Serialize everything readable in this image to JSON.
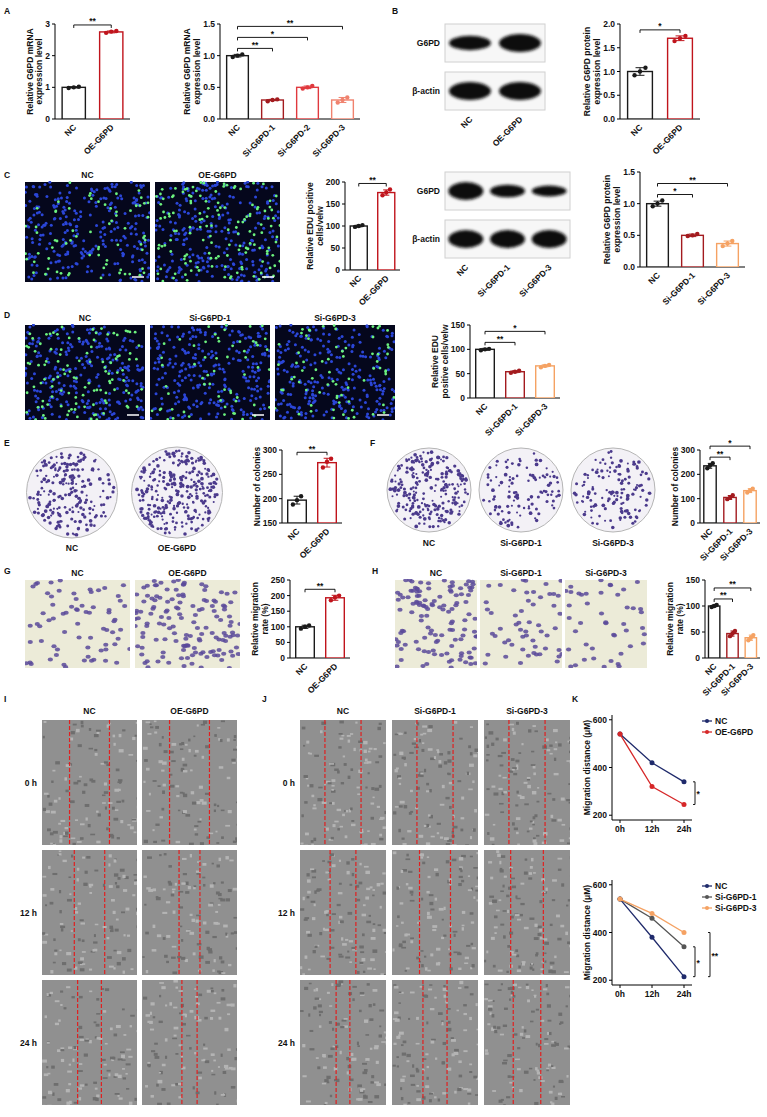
{
  "panel_labels": [
    "A",
    "B",
    "C",
    "D",
    "E",
    "F",
    "G",
    "H",
    "I",
    "J",
    "K"
  ],
  "chart_data": [
    {
      "type": "bar",
      "y_label": "Relative G6PD mRNA expression level",
      "categories": [
        "NC",
        "OE-G6PD"
      ],
      "values": [
        1.0,
        2.75
      ],
      "errors": [
        0.02,
        0.03
      ],
      "points": [
        [
          0.98,
          1.0,
          1.02
        ],
        [
          2.72,
          2.76,
          2.78
        ]
      ],
      "colors": [
        "#1a1a1a",
        "#c0141c"
      ],
      "ylim": [
        0,
        3
      ],
      "yticks": [
        0,
        1,
        2,
        3
      ],
      "annotations": [
        {
          "from": "NC",
          "to": "OE-G6PD",
          "text": "**"
        }
      ]
    },
    {
      "type": "bar",
      "y_label": "Relative G6PD mRNA expression level",
      "categories": [
        "NC",
        "Si-G6PD-1",
        "Si-G6PD-2",
        "Si-G6PD-3"
      ],
      "values": [
        1.0,
        0.3,
        0.5,
        0.3
      ],
      "errors": [
        0.02,
        0.01,
        0.02,
        0.04
      ],
      "points": [
        [
          0.98,
          1.0,
          1.02
        ],
        [
          0.28,
          0.3,
          0.31
        ],
        [
          0.48,
          0.5,
          0.52
        ],
        [
          0.26,
          0.3,
          0.34
        ]
      ],
      "colors": [
        "#1a1a1a",
        "#a31b1f",
        "#e0393e",
        "#f0826e"
      ],
      "ylim": [
        0,
        1.5
      ],
      "yticks": [
        {
          "value": 0,
          "label": "0.0"
        },
        {
          "value": 0.5,
          "label": "0.5"
        },
        {
          "value": 1,
          "label": "1.0"
        },
        {
          "value": 1.5,
          "label": "1.5"
        }
      ],
      "annotations": [
        {
          "from": "NC",
          "to": "Si-G6PD-1",
          "text": "**"
        },
        {
          "from": "NC",
          "to": "Si-G6PD-2",
          "text": "*"
        },
        {
          "from": "NC",
          "to": "Si-G6PD-3",
          "text": "**"
        }
      ]
    },
    {
      "type": "bar",
      "y_label": "Relative G6PD protein expression level",
      "categories": [
        "NC",
        "OE-G6PD"
      ],
      "values": [
        1.0,
        1.7
      ],
      "errors": [
        0.08,
        0.05
      ],
      "points": [
        [
          0.92,
          1.0,
          1.08
        ],
        [
          1.64,
          1.7,
          1.75
        ]
      ],
      "colors": [
        "#1a1a1a",
        "#c0141c"
      ],
      "ylim": [
        0,
        2
      ],
      "yticks": [
        {
          "value": 0,
          "label": "0.0"
        },
        {
          "value": 0.5,
          "label": "0.5"
        },
        {
          "value": 1,
          "label": "1.0"
        },
        {
          "value": 1.5,
          "label": "1.5"
        },
        {
          "value": 2,
          "label": "2.0"
        }
      ],
      "annotations": [
        {
          "from": "NC",
          "to": "OE-G6PD",
          "text": "*"
        }
      ]
    },
    {
      "type": "bar",
      "y_label": "Relative G6PD protein expression level",
      "categories": [
        "NC",
        "Si-G6PD-1",
        "Si-G6PD-3"
      ],
      "values": [
        1.0,
        0.5,
        0.37
      ],
      "errors": [
        0.04,
        0.02,
        0.04
      ],
      "points": [
        [
          0.96,
          1.0,
          1.05
        ],
        [
          0.49,
          0.5,
          0.52
        ],
        [
          0.33,
          0.37,
          0.41
        ]
      ],
      "colors": [
        "#1a1a1a",
        "#a31b1f",
        "#f5a263"
      ],
      "ylim": [
        0,
        1.5
      ],
      "yticks": [
        {
          "value": 0,
          "label": "0.0"
        },
        {
          "value": 0.5,
          "label": "0.5"
        },
        {
          "value": 1,
          "label": "1.0"
        },
        {
          "value": 1.5,
          "label": "1.5"
        }
      ],
      "annotations": [
        {
          "from": "NC",
          "to": "Si-G6PD-1",
          "text": "*"
        },
        {
          "from": "NC",
          "to": "Si-G6PD-3",
          "text": "**"
        }
      ]
    },
    {
      "type": "bar",
      "y_label": "Relative EDU positive cells/velw",
      "categories": [
        "NC",
        "OE-G6PD"
      ],
      "values": [
        100,
        176
      ],
      "errors": [
        2,
        6
      ],
      "points": [
        [
          98,
          100,
          102
        ],
        [
          170,
          176,
          183
        ]
      ],
      "colors": [
        "#1a1a1a",
        "#c0141c"
      ],
      "ylim": [
        0,
        200
      ],
      "yticks": [
        0,
        50,
        100,
        150,
        200
      ],
      "annotations": [
        {
          "from": "NC",
          "to": "OE-G6PD",
          "text": "**"
        }
      ]
    },
    {
      "type": "bar",
      "y_label": "Relative EDU positive cells/velw",
      "categories": [
        "NC",
        "Si-G6PD-1",
        "Si-G6PD-3"
      ],
      "values": [
        100,
        54,
        66
      ],
      "errors": [
        2,
        2,
        2
      ],
      "points": [
        [
          98,
          100,
          101
        ],
        [
          52,
          54,
          56
        ],
        [
          63,
          66,
          68
        ]
      ],
      "colors": [
        "#1a1a1a",
        "#a31b1f",
        "#f5a263"
      ],
      "ylim": [
        0,
        150
      ],
      "yticks": [
        0,
        50,
        100,
        150
      ],
      "annotations": [
        {
          "from": "NC",
          "to": "Si-G6PD-1",
          "text": "**"
        },
        {
          "from": "NC",
          "to": "Si-G6PD-3",
          "text": "*"
        }
      ]
    },
    {
      "type": "bar",
      "y_label": "Number of colonies",
      "categories": [
        "NC",
        "OE-G6PD"
      ],
      "values": [
        197,
        274
      ],
      "errors": [
        8,
        9
      ],
      "points": [
        [
          188,
          197,
          205
        ],
        [
          264,
          276,
          282
        ]
      ],
      "colors": [
        "#1a1a1a",
        "#c0141c"
      ],
      "ylim": [
        150,
        300
      ],
      "yticks": [
        150,
        200,
        250,
        300
      ],
      "annotations": [
        {
          "from": "NC",
          "to": "OE-G6PD",
          "text": "**"
        }
      ]
    },
    {
      "type": "bar",
      "y_label": "Number of colonies",
      "categories": [
        "NC",
        "Si-G6PD-1",
        "Si-G6PD-3"
      ],
      "values": [
        235,
        105,
        133
      ],
      "errors": [
        10,
        8,
        8
      ],
      "points": [
        [
          225,
          236,
          246
        ],
        [
          98,
          104,
          114
        ],
        [
          125,
          133,
          141
        ]
      ],
      "colors": [
        "#1a1a1a",
        "#a31b1f",
        "#f5a263"
      ],
      "ylim": [
        0,
        300
      ],
      "yticks": [
        0,
        100,
        200,
        300
      ],
      "annotations": [
        {
          "from": "NC",
          "to": "Si-G6PD-1",
          "text": "**"
        },
        {
          "from": "NC",
          "to": "Si-G6PD-3",
          "text": "*"
        }
      ]
    },
    {
      "type": "bar",
      "y_label": "Relative migration rate (%)",
      "categories": [
        "NC",
        "OE-G6PD"
      ],
      "values": [
        100,
        193
      ],
      "errors": [
        5,
        8
      ],
      "points": [
        [
          94,
          100,
          104
        ],
        [
          185,
          194,
          200
        ]
      ],
      "colors": [
        "#1a1a1a",
        "#c0141c"
      ],
      "ylim": [
        0,
        250
      ],
      "yticks": [
        0,
        50,
        100,
        150,
        200,
        250
      ],
      "annotations": [
        {
          "from": "NC",
          "to": "OE-G6PD",
          "text": "**"
        }
      ]
    },
    {
      "type": "bar",
      "y_label": "Relative migration rate (%)",
      "categories": [
        "NC",
        "Si-G6PD-1",
        "Si-G6PD-3"
      ],
      "values": [
        100,
        47,
        39
      ],
      "errors": [
        2,
        5,
        5
      ],
      "points": [
        [
          98,
          100,
          102
        ],
        [
          42,
          47,
          52
        ],
        [
          34,
          39,
          44
        ]
      ],
      "colors": [
        "#1a1a1a",
        "#a31b1f",
        "#f5a263"
      ],
      "ylim": [
        0,
        150
      ],
      "yticks": [
        0,
        50,
        100,
        150
      ],
      "annotations": [
        {
          "from": "NC",
          "to": "Si-G6PD-1",
          "text": "**"
        },
        {
          "from": "NC",
          "to": "Si-G6PD-3",
          "text": "**"
        }
      ]
    },
    {
      "type": "line",
      "y_label": "Migration distance (μM)",
      "categories": [
        "0h",
        "12h",
        "24h"
      ],
      "series": [
        {
          "name": "NC",
          "color": "#1f2a6b",
          "values": [
            540,
            420,
            340
          ]
        },
        {
          "name": "OE-G6PD",
          "color": "#d62728",
          "values": [
            540,
            320,
            245
          ]
        }
      ],
      "ylim": [
        180,
        620
      ],
      "yticks": [
        200,
        400,
        600
      ],
      "marker": "circle",
      "legend": "right",
      "annotations": [
        {
          "from": "NC",
          "to": "OE-G6PD",
          "text": "*"
        }
      ]
    },
    {
      "type": "line",
      "y_label": "Migration distance (μM)",
      "categories": [
        "0h",
        "12h",
        "24h"
      ],
      "series": [
        {
          "name": "NC",
          "color": "#1f2a6b",
          "values": [
            540,
            380,
            215
          ]
        },
        {
          "name": "Si-G6PD-1",
          "color": "#555555",
          "values": [
            540,
            460,
            340
          ]
        },
        {
          "name": "Si-G6PD-3",
          "color": "#f5a263",
          "values": [
            540,
            480,
            400
          ]
        }
      ],
      "ylim": [
        180,
        620
      ],
      "yticks": [
        200,
        400,
        600
      ],
      "marker": "circle",
      "legend": "right",
      "annotations": [
        {
          "from": "NC",
          "to": "Si-G6PD-1",
          "text": "*"
        },
        {
          "from": "NC",
          "to": "Si-G6PD-3",
          "text": "**"
        }
      ]
    }
  ],
  "images": {
    "blot_oe": {
      "lanes": [
        "NC",
        "OE-G6PD"
      ],
      "bands": [
        "G6PD",
        "β-actin"
      ]
    },
    "blot_si": {
      "lanes": [
        "NC",
        "Si-G6PD-1",
        "Si-G6PD-3"
      ],
      "bands": [
        "G6PD",
        "β-actin"
      ]
    },
    "edu_oe": [
      "NC",
      "OE-G6PD"
    ],
    "edu_si": [
      "NC",
      "Si-G6PD-1",
      "Si-G6PD-3"
    ],
    "colony_oe": [
      "NC",
      "OE-G6PD"
    ],
    "colony_si": [
      "NC",
      "Si-G6PD-1",
      "Si-G6PD-3"
    ],
    "transwell_oe": [
      "NC",
      "OE-G6PD"
    ],
    "transwell_si": [
      "NC",
      "Si-G6PD-1",
      "Si-G6PD-3"
    ],
    "wound_oe": {
      "columns": [
        "NC",
        "OE-G6PD"
      ],
      "rows": [
        "0 h",
        "12 h",
        "24 h"
      ]
    },
    "wound_si": {
      "columns": [
        "NC",
        "Si-G6PD-1",
        "Si-G6PD-3"
      ],
      "rows": [
        "0 h",
        "12 h",
        "24 h"
      ]
    }
  }
}
